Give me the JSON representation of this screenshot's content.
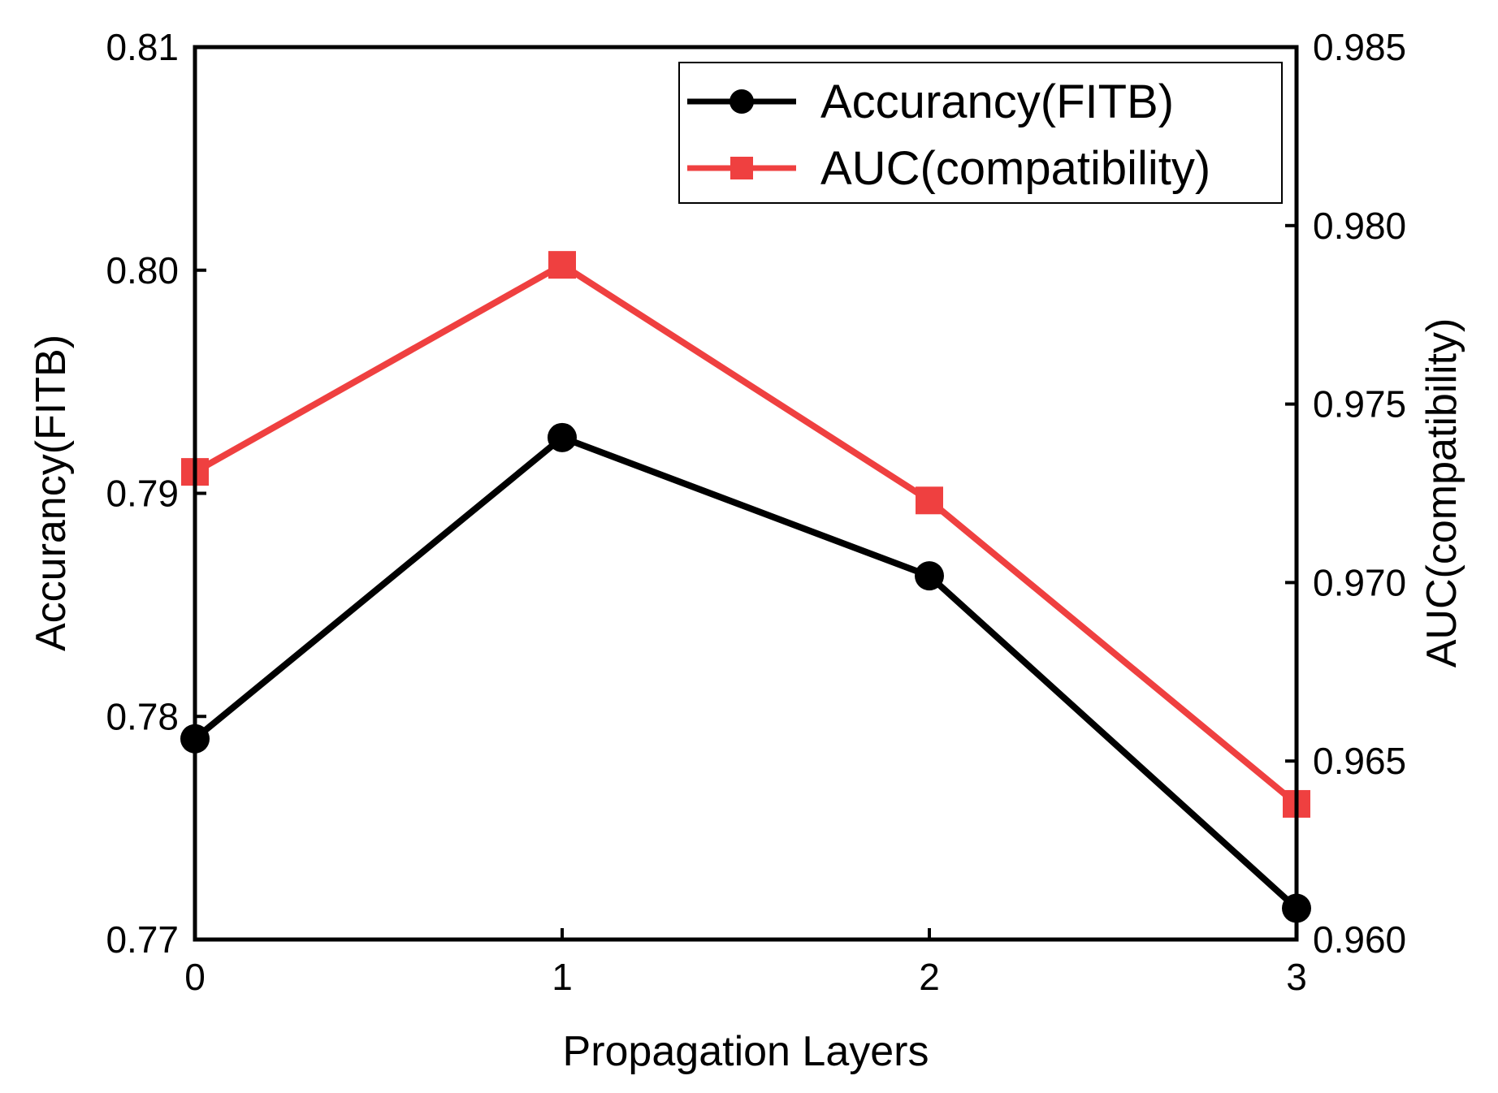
{
  "chart_data": {
    "type": "line",
    "x": [
      0,
      1,
      2,
      3
    ],
    "xlabel": "Propagation Layers",
    "xlim": [
      0,
      3
    ],
    "xticks": [
      "0",
      "1",
      "2",
      "3"
    ],
    "y_left": {
      "label": "Accurancy(FITB)",
      "lim": [
        0.77,
        0.81
      ],
      "ticks": [
        "0.77",
        "0.78",
        "0.79",
        "0.80",
        "0.81"
      ]
    },
    "y_right": {
      "label": "AUC(compatibility)",
      "lim": [
        0.96,
        0.985
      ],
      "ticks": [
        "0.960",
        "0.965",
        "0.970",
        "0.975",
        "0.980",
        "0.985"
      ]
    },
    "series": [
      {
        "name": "Accurancy(FITB)",
        "axis": "left",
        "color": "#000000",
        "marker": "circle",
        "values": [
          0.779,
          0.7925,
          0.7863,
          0.7714
        ]
      },
      {
        "name": "AUC(compatibility)",
        "axis": "right",
        "color": "#ef4040",
        "marker": "square",
        "values": [
          0.9731,
          0.9789,
          0.9723,
          0.9638
        ]
      }
    ],
    "legend": "top-right",
    "grid": false
  }
}
